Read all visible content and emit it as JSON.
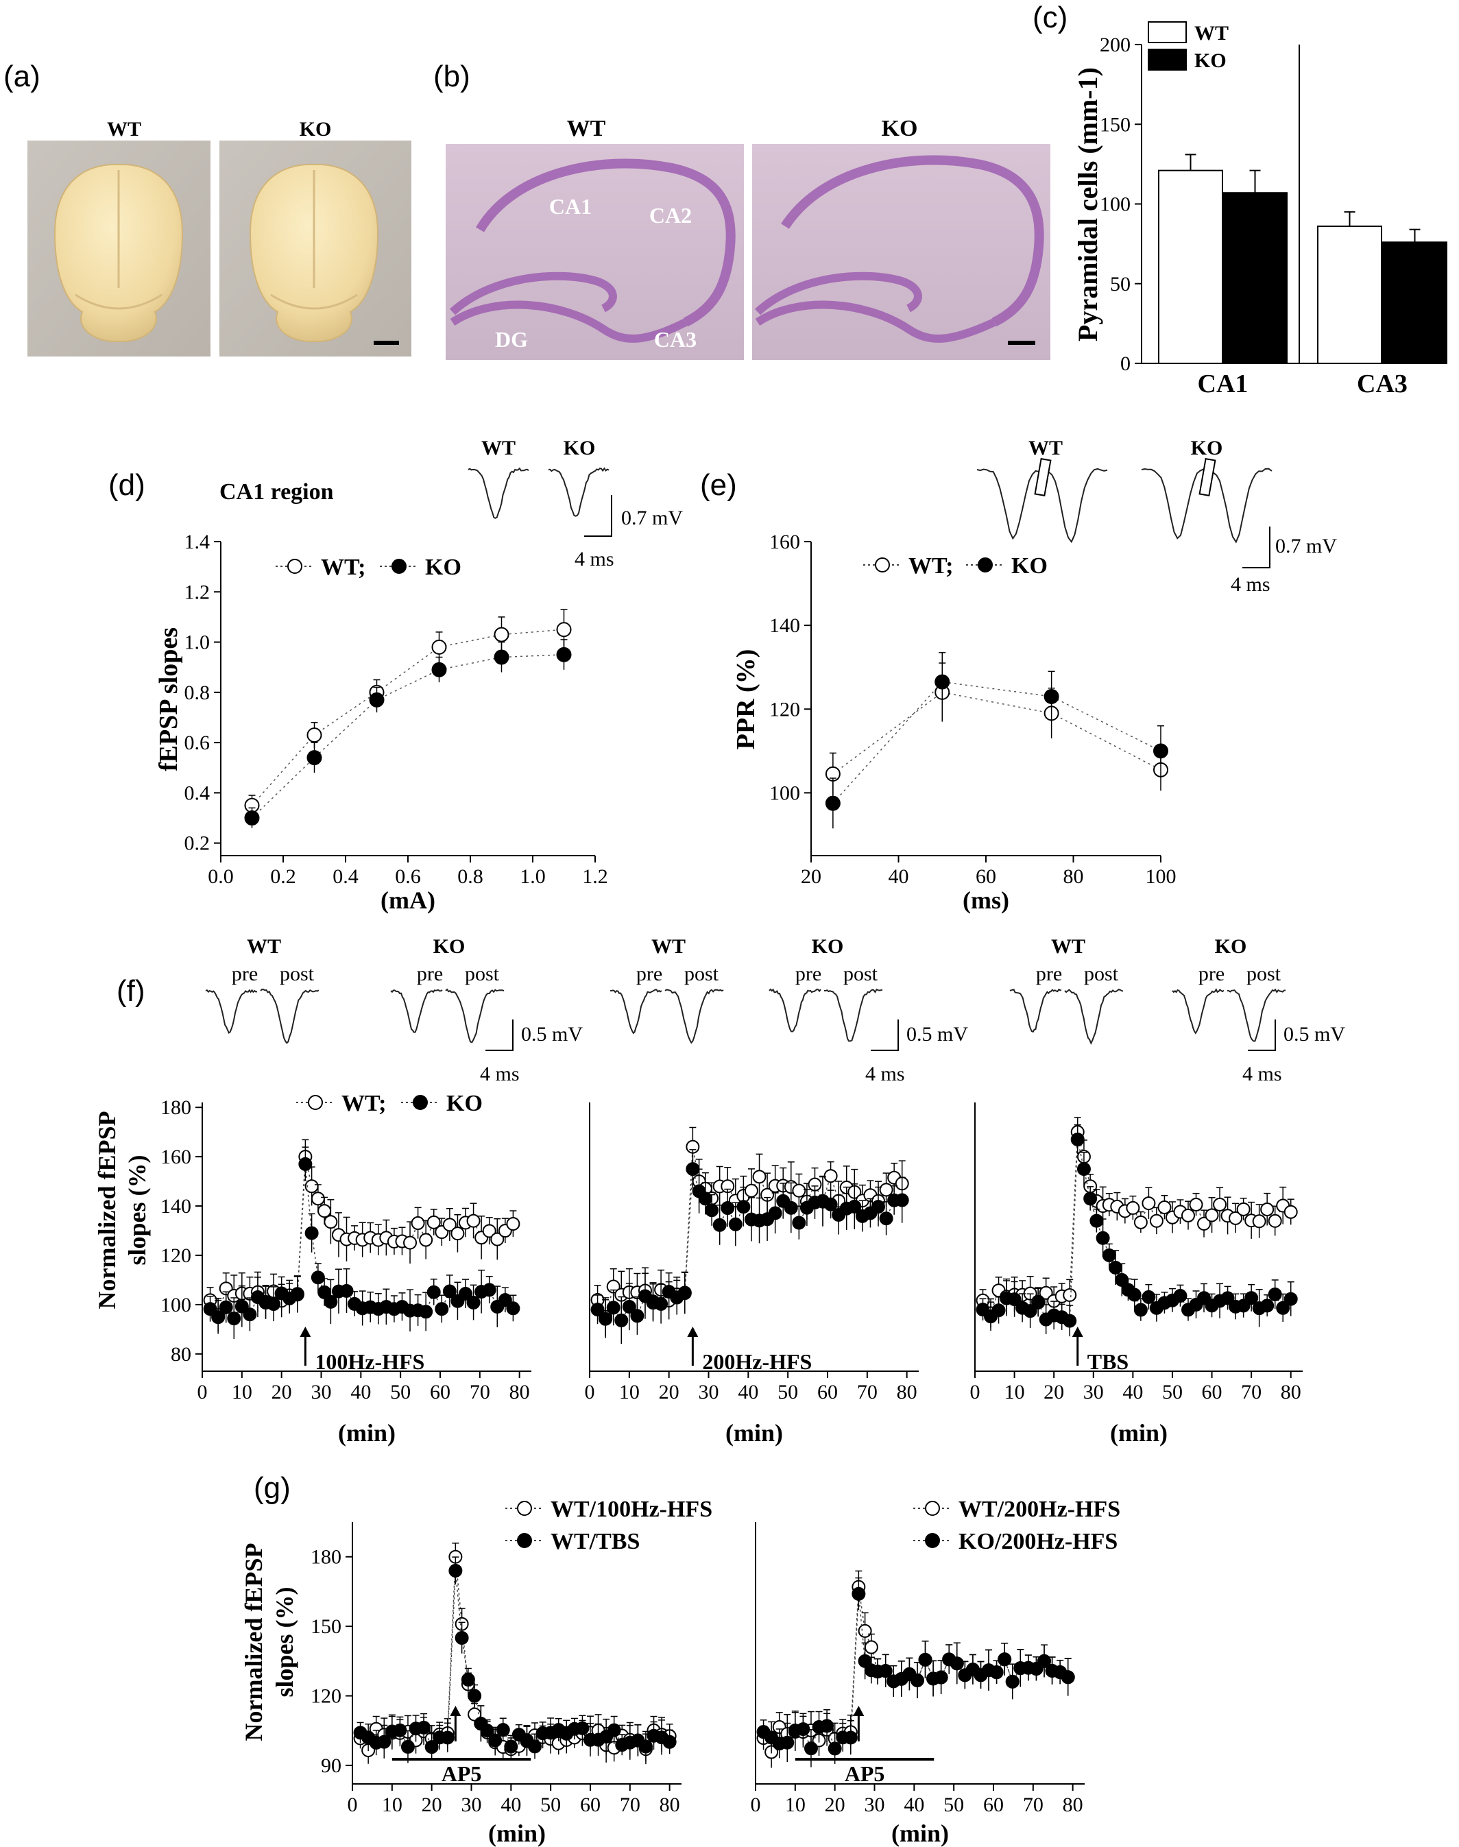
{
  "panels": {
    "a": {
      "label": "(a)",
      "groups": [
        "WT",
        "KO"
      ]
    },
    "b": {
      "label": "(b)",
      "groups": [
        "WT",
        "KO"
      ],
      "regions": [
        "CA1",
        "CA2",
        "DG",
        "CA3"
      ]
    },
    "c": {
      "label": "(c)"
    },
    "d": {
      "label": "(d)",
      "title": "CA1 region",
      "trace_groups": [
        "WT",
        "KO"
      ],
      "scale_v": "0.7 mV",
      "scale_t": "4 ms"
    },
    "e": {
      "label": "(e)",
      "trace_groups": [
        "WT",
        "KO"
      ],
      "scale_v": "0.7 mV",
      "scale_t": "4 ms"
    },
    "f": {
      "label": "(f)",
      "trace_groups": [
        "WT",
        "KO"
      ],
      "trace_pre": "pre",
      "trace_post": "post",
      "scale_v": "0.5 mV",
      "scale_t": "4 ms",
      "ylabel_line1": "Normalized fEPSP",
      "ylabel_line2": "slopes (%)",
      "stim": [
        "100Hz-HFS",
        "200Hz-HFS",
        "TBS"
      ]
    },
    "g": {
      "label": "(g)",
      "ylabel_line1": "Normalized fEPSP",
      "ylabel_line2": "slopes (%)",
      "drug": "AP5"
    }
  },
  "colors": {
    "wt_fill": "#ffffff",
    "ko_fill": "#000000",
    "stroke": "#000000"
  },
  "chart_data": [
    {
      "id": "c",
      "type": "bar",
      "ylabel": "Pyramidal cells (mm-1)",
      "ylim": [
        0,
        200
      ],
      "yticks": [
        0,
        50,
        100,
        150,
        200
      ],
      "categories": [
        "CA1",
        "CA3"
      ],
      "series": [
        {
          "name": "WT",
          "values": [
            121,
            86
          ],
          "errors": [
            10,
            9
          ]
        },
        {
          "name": "KO",
          "values": [
            107,
            76
          ],
          "errors": [
            14,
            8
          ]
        }
      ],
      "legend": "top-left"
    },
    {
      "id": "d",
      "type": "scatter",
      "ylabel": "fEPSP slopes",
      "xlabel": "(mA)",
      "xlim": [
        0,
        1.2
      ],
      "ylim": [
        0.15,
        1.4
      ],
      "xticks": [
        0.0,
        0.2,
        0.4,
        0.6,
        0.8,
        1.0,
        1.2
      ],
      "yticks": [
        0.2,
        0.4,
        0.6,
        0.8,
        1.0,
        1.2,
        1.4
      ],
      "x": [
        0.1,
        0.3,
        0.5,
        0.7,
        0.9,
        1.1
      ],
      "series": [
        {
          "name": "WT",
          "values": [
            0.35,
            0.63,
            0.8,
            0.98,
            1.03,
            1.05
          ],
          "errors": [
            0.04,
            0.05,
            0.05,
            0.06,
            0.07,
            0.08
          ]
        },
        {
          "name": "KO",
          "values": [
            0.3,
            0.54,
            0.77,
            0.89,
            0.94,
            0.95
          ],
          "errors": [
            0.04,
            0.06,
            0.05,
            0.05,
            0.06,
            0.06
          ]
        }
      ],
      "legend_sep": ";"
    },
    {
      "id": "e",
      "type": "scatter",
      "ylabel": "PPR (%)",
      "xlabel": "(ms)",
      "xlim": [
        20,
        100
      ],
      "ylim": [
        85,
        160
      ],
      "xticks": [
        20,
        40,
        60,
        80,
        100
      ],
      "yticks": [
        100,
        120,
        140,
        160
      ],
      "x": [
        25,
        50,
        75,
        100
      ],
      "series": [
        {
          "name": "WT",
          "values": [
            104.5,
            124,
            119,
            105.5
          ],
          "errors": [
            5,
            7,
            6,
            5
          ]
        },
        {
          "name": "KO",
          "values": [
            97.5,
            126.5,
            123,
            110
          ],
          "errors": [
            6,
            7,
            6,
            6
          ]
        }
      ],
      "legend_sep": ";"
    },
    {
      "id": "f1",
      "type": "scatter",
      "xlabel": "(min)",
      "xlim": [
        0,
        83
      ],
      "ylim": [
        73,
        182
      ],
      "xticks": [
        0,
        10,
        20,
        30,
        40,
        50,
        60,
        70,
        80
      ],
      "yticks": [
        80,
        100,
        120,
        140,
        160,
        180
      ],
      "stim_time": 26,
      "wt_early": [
        160,
        148,
        143,
        138
      ],
      "wt_plateau": 130,
      "ko_early": [
        157,
        129,
        111,
        105
      ],
      "ko_plateau": 102,
      "base_wt": 101,
      "base_ko": 100,
      "err": 7,
      "series": [
        {
          "name": "WT"
        },
        {
          "name": "KO"
        }
      ],
      "legend_sep": ";"
    },
    {
      "id": "f2",
      "type": "scatter",
      "xlabel": "(min)",
      "xlim": [
        0,
        83
      ],
      "ylim": [
        73,
        182
      ],
      "xticks": [
        0,
        10,
        20,
        30,
        40,
        50,
        60,
        70,
        80
      ],
      "stim_time": 26,
      "wt_early": [
        164,
        150,
        147
      ],
      "wt_plateau": 147,
      "ko_early": [
        155,
        146,
        143
      ],
      "ko_plateau": 137,
      "base_wt": 101,
      "base_ko": 100,
      "err": 8
    },
    {
      "id": "f3",
      "type": "scatter",
      "xlabel": "(min)",
      "xlim": [
        0,
        83
      ],
      "ylim": [
        73,
        182
      ],
      "xticks": [
        0,
        10,
        20,
        30,
        40,
        50,
        60,
        70,
        80
      ],
      "stim_time": 26,
      "wt_early": [
        170,
        160,
        148,
        142,
        140
      ],
      "wt_plateau": 137,
      "ko_early": [
        167,
        155,
        143,
        134,
        127,
        120,
        115,
        110,
        106,
        104
      ],
      "ko_plateau": 100,
      "base_wt": 101,
      "base_ko": 98,
      "err": 6
    },
    {
      "id": "g1",
      "type": "scatter",
      "xlabel": "(min)",
      "xlim": [
        0,
        83
      ],
      "ylim": [
        82,
        195
      ],
      "xticks": [
        0,
        10,
        20,
        30,
        40,
        50,
        60,
        70,
        80
      ],
      "yticks": [
        90,
        120,
        150,
        180
      ],
      "stim_time": 26,
      "drug_span": [
        10,
        45
      ],
      "series": [
        {
          "name": "WT/100Hz-HFS",
          "early": [
            180,
            151,
            125,
            112,
            108
          ],
          "plateau": 101
        },
        {
          "name": "WT/TBS",
          "early": [
            174,
            145,
            127,
            120,
            108
          ],
          "plateau": 102
        }
      ],
      "err": 6
    },
    {
      "id": "g2",
      "type": "scatter",
      "xlabel": "(min)",
      "xlim": [
        0,
        83
      ],
      "ylim": [
        82,
        195
      ],
      "xticks": [
        0,
        10,
        20,
        30,
        40,
        50,
        60,
        70,
        80
      ],
      "stim_time": 26,
      "drug_span": [
        10,
        45
      ],
      "series": [
        {
          "name": "WT/200Hz-HFS",
          "early": [
            167,
            148,
            141
          ],
          "plateau": 131
        },
        {
          "name": "KO/200Hz-HFS",
          "early": [
            164,
            135,
            131
          ],
          "plateau": 131
        }
      ],
      "err": 7
    }
  ]
}
